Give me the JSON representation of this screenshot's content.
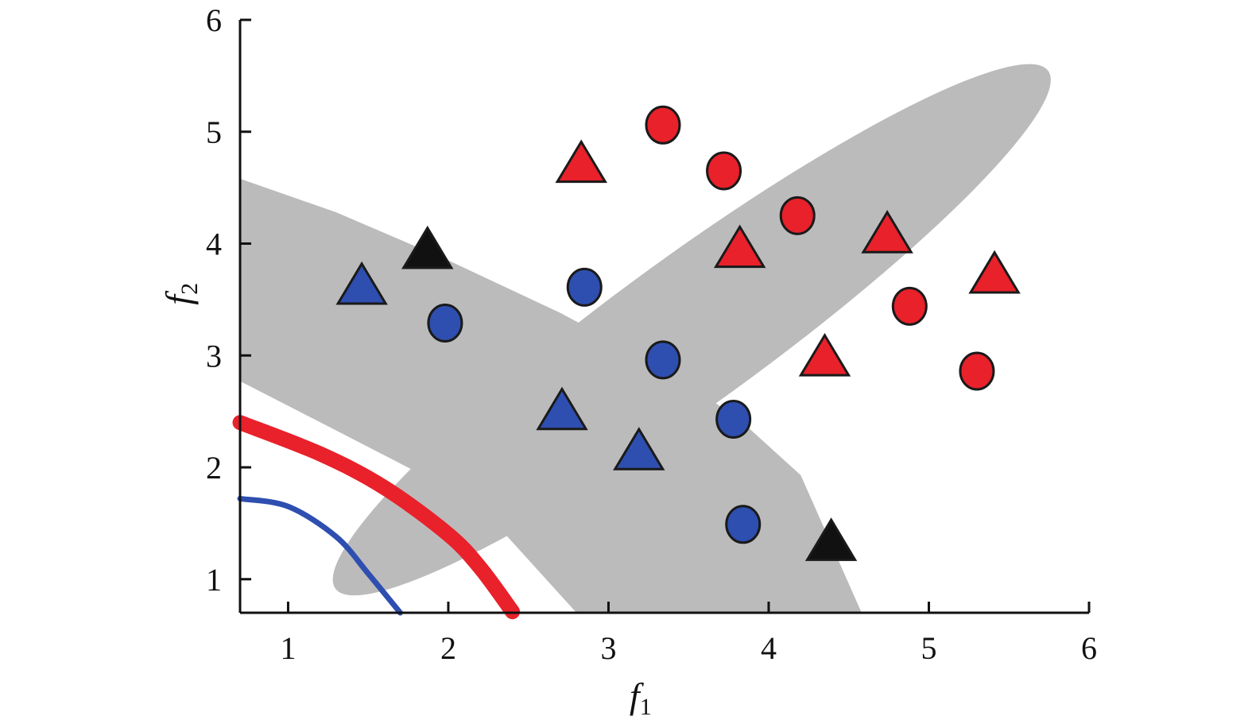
{
  "chart_data": {
    "type": "scatter",
    "title": "",
    "xlabel": "f",
    "xlabel_sub": "1",
    "ylabel": "f",
    "ylabel_sub": "2",
    "xlim": [
      0.7,
      6
    ],
    "ylim": [
      0.7,
      6
    ],
    "xticks": [
      "1",
      "2",
      "3",
      "4",
      "5",
      "6"
    ],
    "yticks": [
      "1",
      "2",
      "3",
      "4",
      "5",
      "6"
    ],
    "grid": false,
    "colors": {
      "red": "#e8212b",
      "blue": "#2e4fb0",
      "black": "#111111",
      "region": "#bbbbbb",
      "outline": "#1a1a1a"
    },
    "regions": [
      {
        "shape": "band",
        "upper_boundary": [
          [
            0.7,
            4.58
          ],
          [
            1.3,
            4.28
          ],
          [
            2.0,
            3.85
          ],
          [
            2.7,
            3.38
          ],
          [
            3.3,
            2.92
          ],
          [
            3.8,
            2.45
          ],
          [
            4.2,
            1.93
          ],
          [
            4.58,
            0.7
          ]
        ],
        "lower_boundary": [
          [
            0.7,
            2.77
          ],
          [
            1.3,
            2.33
          ],
          [
            1.8,
            1.96
          ],
          [
            2.3,
            1.49
          ],
          [
            2.8,
            0.7
          ]
        ]
      },
      {
        "shape": "ellipse",
        "center": [
          3.52,
          3.23
        ],
        "semi_major": 2.75,
        "semi_minor": 0.66,
        "rotation_deg": -36
      }
    ],
    "curves": [
      {
        "color": "red",
        "width": "thick",
        "points": [
          [
            0.7,
            2.4
          ],
          [
            1.2,
            2.12
          ],
          [
            1.6,
            1.82
          ],
          [
            2.0,
            1.4
          ],
          [
            2.2,
            1.1
          ],
          [
            2.4,
            0.71
          ]
        ]
      },
      {
        "color": "blue",
        "width": "thin",
        "points": [
          [
            0.7,
            1.72
          ],
          [
            1.0,
            1.65
          ],
          [
            1.3,
            1.38
          ],
          [
            1.5,
            1.05
          ],
          [
            1.7,
            0.7
          ]
        ]
      }
    ],
    "series": [
      {
        "marker": "circle",
        "color": "red",
        "points": [
          [
            3.34,
            5.06
          ],
          [
            3.72,
            4.65
          ],
          [
            4.18,
            4.25
          ],
          [
            4.88,
            3.44
          ],
          [
            5.3,
            2.86
          ]
        ]
      },
      {
        "marker": "triangle",
        "color": "red",
        "points": [
          [
            2.83,
            4.69
          ],
          [
            3.82,
            3.93
          ],
          [
            4.74,
            4.06
          ],
          [
            5.41,
            3.7
          ],
          [
            4.35,
            2.96
          ]
        ]
      },
      {
        "marker": "circle",
        "color": "blue",
        "points": [
          [
            1.98,
            3.29
          ],
          [
            2.85,
            3.61
          ],
          [
            3.34,
            2.96
          ],
          [
            3.78,
            2.43
          ],
          [
            3.84,
            1.49
          ]
        ]
      },
      {
        "marker": "triangle",
        "color": "blue",
        "points": [
          [
            1.46,
            3.6
          ],
          [
            2.71,
            2.48
          ],
          [
            3.19,
            2.12
          ]
        ]
      },
      {
        "marker": "triangle",
        "color": "black",
        "points": [
          [
            1.87,
            3.92
          ],
          [
            4.39,
            1.31
          ]
        ]
      }
    ]
  }
}
